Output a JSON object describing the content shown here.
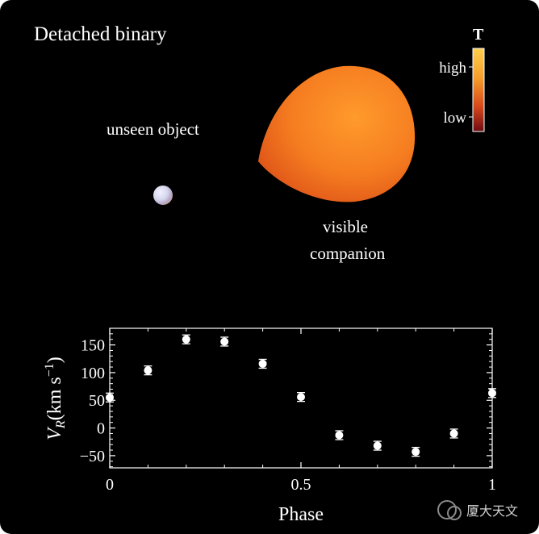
{
  "diagram": {
    "title": "Detached binary",
    "unseen_label": "unseen  object",
    "visible_label_line1": "visible",
    "visible_label_line2": "companion",
    "colorbar": {
      "title": "T",
      "high": "high",
      "low": "low",
      "top_color": "#ffc94a",
      "bottom_color": "#7a0d12"
    },
    "star_color": "#f07820",
    "object_color": "#cfd8f2"
  },
  "chart_data": {
    "type": "scatter",
    "xlabel": "Phase",
    "ylabel_main": "V",
    "ylabel_sub": "R",
    "ylabel_units": "(km s",
    "ylabel_exp": "−1",
    "ylabel_close": ")",
    "xlim": [
      0,
      1
    ],
    "ylim": [
      -72,
      180
    ],
    "xticks": [
      0,
      0.5,
      1
    ],
    "xtick_labels": [
      "0",
      "0.5",
      "1"
    ],
    "yticks": [
      150,
      100,
      50,
      0,
      -50
    ],
    "ytick_labels": [
      "150",
      "100",
      "50",
      "0",
      "−50"
    ],
    "grid": false,
    "series": [
      {
        "x": [
          0.0,
          0.1,
          0.2,
          0.3,
          0.4,
          0.5,
          0.6,
          0.7,
          0.8,
          0.9,
          1.0
        ],
        "y": [
          55,
          104,
          160,
          156,
          116,
          56,
          -13,
          -32,
          -43,
          -10,
          63
        ],
        "err": [
          8,
          8,
          8,
          8,
          8,
          8,
          8,
          8,
          8,
          8,
          8
        ]
      }
    ]
  },
  "watermark": {
    "text": "厦大天文"
  }
}
